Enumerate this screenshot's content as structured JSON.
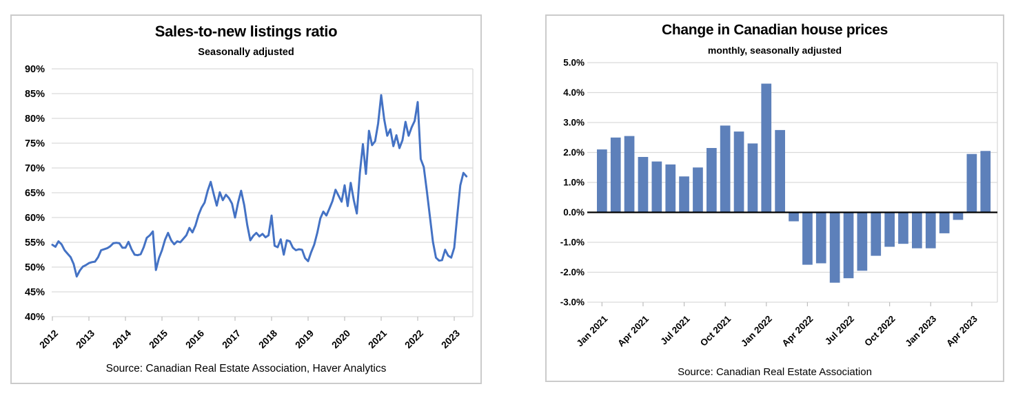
{
  "chart_data": [
    {
      "type": "line",
      "title": "Sales-to-new listings ratio",
      "subtitle": "Seasonally adjusted",
      "source": "Source: Canadian Real Estate Association, Haver Analytics",
      "unit": "percent",
      "frequency": "monthly",
      "x_start": "Jan 2012",
      "x_end": "May 2023",
      "ylim": [
        40,
        90
      ],
      "grid": "horizontal",
      "legend": "none",
      "line_color": "#4472c4",
      "grid_color": "#d9d9d9",
      "y_tick_labels": [
        "90%",
        "85%",
        "80%",
        "75%",
        "70%",
        "65%",
        "60%",
        "55%",
        "50%",
        "45%",
        "40%"
      ],
      "y_tick_values": [
        90,
        85,
        80,
        75,
        70,
        65,
        60,
        55,
        50,
        45,
        40
      ],
      "x_tick_labels": [
        "2012",
        "2013",
        "2014",
        "2015",
        "2016",
        "2017",
        "2018",
        "2019",
        "2020",
        "2021",
        "2022",
        "2023"
      ],
      "values": [
        54.5,
        54.1,
        55.2,
        54.6,
        53.4,
        52.7,
        52.0,
        50.6,
        48.1,
        49.3,
        50.1,
        50.4,
        50.8,
        51.0,
        51.1,
        52.0,
        53.4,
        53.6,
        53.8,
        54.2,
        54.8,
        54.9,
        54.8,
        53.9,
        53.9,
        55.1,
        53.6,
        52.5,
        52.4,
        52.6,
        54.0,
        55.9,
        56.4,
        57.2,
        49.4,
        51.8,
        53.4,
        55.5,
        56.9,
        55.4,
        54.6,
        55.2,
        55.0,
        55.7,
        56.4,
        57.9,
        57.0,
        58.4,
        60.5,
        62.0,
        63.0,
        65.4,
        67.2,
        64.7,
        62.4,
        65.1,
        63.5,
        64.6,
        63.9,
        62.8,
        60.0,
        63.0,
        65.4,
        62.5,
        58.5,
        55.4,
        56.3,
        56.9,
        56.2,
        56.7,
        56.0,
        56.4,
        60.4,
        54.3,
        54.0,
        55.6,
        52.5,
        55.4,
        55.2,
        53.9,
        53.4,
        53.6,
        53.5,
        51.8,
        51.2,
        53.0,
        54.5,
        56.9,
        59.8,
        61.2,
        60.4,
        61.8,
        63.3,
        65.6,
        64.4,
        63.2,
        66.5,
        62.3,
        67.0,
        63.5,
        60.8,
        69.0,
        74.8,
        68.8,
        77.5,
        74.6,
        75.4,
        79.0,
        84.7,
        79.8,
        76.5,
        77.8,
        74.4,
        76.6,
        74.0,
        75.6,
        79.3,
        76.5,
        78.2,
        79.5,
        83.3,
        71.8,
        70.2,
        65.3,
        60.2,
        55.1,
        51.9,
        51.3,
        51.4,
        53.5,
        52.3,
        51.9,
        53.9,
        60.4,
        66.5,
        69.0,
        68.3
      ]
    },
    {
      "type": "bar",
      "title": "Change in Canadian house prices",
      "subtitle": "monthly, seasonally adjusted",
      "source": "Source: Canadian Real Estate Association",
      "unit": "percent",
      "ylim": [
        -3,
        5
      ],
      "grid": "horizontal",
      "legend": "none",
      "bar_color": "#5d80ba",
      "grid_color": "#d9d9d9",
      "zero_line_color": "#000000",
      "y_tick_labels": [
        "5.0%",
        "4.0%",
        "3.0%",
        "2.0%",
        "1.0%",
        "0.0%",
        "-1.0%",
        "-2.0%",
        "-3.0%"
      ],
      "y_tick_values": [
        5,
        4,
        3,
        2,
        1,
        0,
        -1,
        -2,
        -3
      ],
      "categories": [
        "Jan 2021",
        "Feb 2021",
        "Mar 2021",
        "Apr 2021",
        "May 2021",
        "Jun 2021",
        "Jul 2021",
        "Aug 2021",
        "Sep 2021",
        "Oct 2021",
        "Nov 2021",
        "Dec 2021",
        "Jan 2022",
        "Feb 2022",
        "Mar 2022",
        "Apr 2022",
        "May 2022",
        "Jun 2022",
        "Jul 2022",
        "Aug 2022",
        "Sep 2022",
        "Oct 2022",
        "Nov 2022",
        "Dec 2022",
        "Jan 2023",
        "Feb 2023",
        "Mar 2023",
        "Apr 2023",
        "May 2023"
      ],
      "values": [
        2.1,
        2.5,
        2.55,
        1.85,
        1.7,
        1.6,
        1.2,
        1.5,
        2.15,
        2.9,
        2.7,
        2.3,
        4.3,
        2.75,
        -0.3,
        -1.75,
        -1.7,
        -2.35,
        -2.2,
        -1.95,
        -1.45,
        -1.15,
        -1.05,
        -1.2,
        -1.2,
        -0.7,
        -0.25,
        1.95,
        2.05
      ],
      "x_tick_labels": [
        "Jan 2021",
        "Apr 2021",
        "Jul 2021",
        "Oct 2021",
        "Jan 2022",
        "Apr 2022",
        "Jul 2022",
        "Oct 2022",
        "Jan 2023",
        "Apr 2023"
      ],
      "x_tick_every": 3
    }
  ]
}
